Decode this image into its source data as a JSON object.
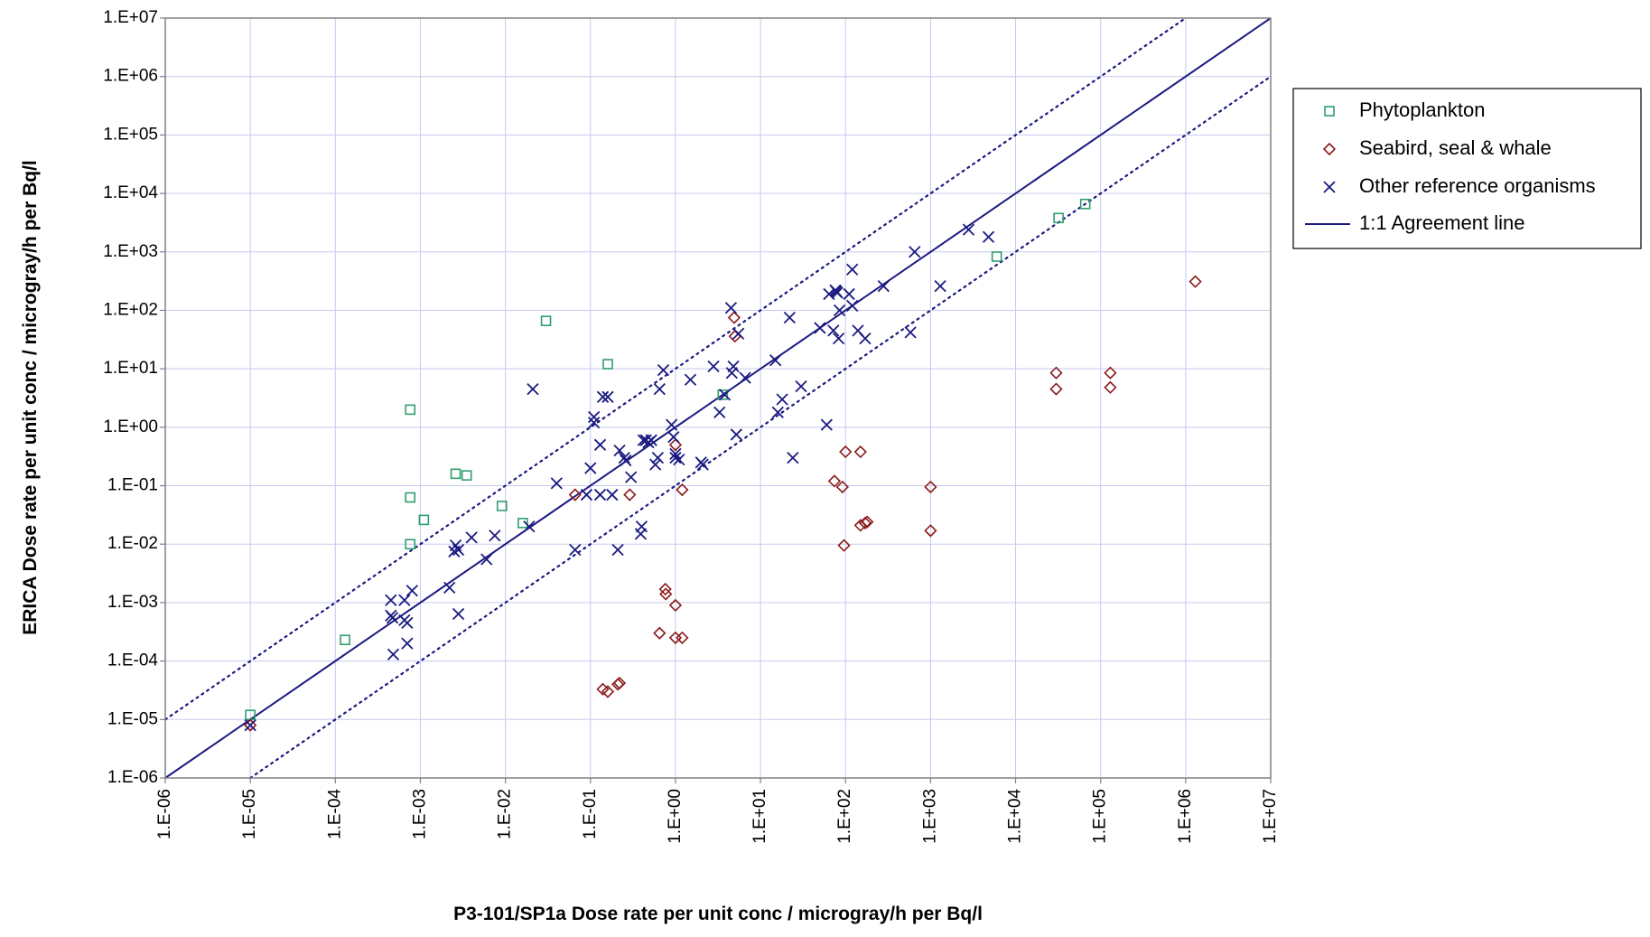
{
  "chart_data": {
    "type": "scatter",
    "x_scale": "log",
    "y_scale": "log",
    "xlim": [
      1e-06,
      10000000.0
    ],
    "ylim": [
      1e-06,
      10000000.0
    ],
    "grid": true,
    "legend_position": "right",
    "xlabel": "P3-101/SP1a Dose rate per unit conc / microgray/h per Bq/l",
    "ylabel": "ERICA Dose rate per unit conc / microgray/h per Bq/l",
    "x_tick_labels": [
      "1.E-06",
      "1.E-05",
      "1.E-04",
      "1.E-03",
      "1.E-02",
      "1.E-01",
      "1.E+00",
      "1.E+01",
      "1.E+02",
      "1.E+03",
      "1.E+04",
      "1.E+05",
      "1.E+06",
      "1.E+07"
    ],
    "y_tick_labels": [
      "1.E-06",
      "1.E-05",
      "1.E-04",
      "1.E-03",
      "1.E-02",
      "1.E-01",
      "1.E+00",
      "1.E+01",
      "1.E+02",
      "1.E+03",
      "1.E+04",
      "1.E+05",
      "1.E+06",
      "1.E+07"
    ],
    "colors": {
      "phytoplankton": "#2e9e6e",
      "seabird": "#8b1a1a",
      "other": "#1a1a80",
      "line": "#1a1a80",
      "grid": "#c8c8f0"
    },
    "series": [
      {
        "name": "Phytoplankton",
        "marker": "square",
        "points": [
          [
            1e-05,
            1.2e-05
          ],
          [
            0.00013,
            0.00023
          ],
          [
            0.00076,
            2.0
          ],
          [
            0.00076,
            0.063
          ],
          [
            0.00076,
            0.01
          ],
          [
            0.0011,
            0.026
          ],
          [
            0.0026,
            0.16
          ],
          [
            0.0035,
            0.15
          ],
          [
            0.0091,
            0.045
          ],
          [
            0.016,
            0.023
          ],
          [
            0.03,
            66.0
          ],
          [
            0.16,
            12.0
          ],
          [
            3.6,
            3.6
          ],
          [
            6000.0,
            830.0
          ],
          [
            32000.0,
            3800.0
          ],
          [
            66000.0,
            6600.0
          ]
        ]
      },
      {
        "name": "Seabird, seal & whale",
        "marker": "diamond",
        "points": [
          [
            1e-05,
            8e-06
          ],
          [
            0.14,
            3.3e-05
          ],
          [
            0.16,
            3e-05
          ],
          [
            0.21,
            4e-05
          ],
          [
            0.22,
            4.2e-05
          ],
          [
            0.066,
            0.07
          ],
          [
            0.29,
            0.07
          ],
          [
            0.65,
            0.0003
          ],
          [
            0.76,
            0.0017
          ],
          [
            0.77,
            0.0014
          ],
          [
            1.0,
            0.0009
          ],
          [
            1.0,
            0.00025
          ],
          [
            1.2,
            0.00025
          ],
          [
            1.0,
            0.5
          ],
          [
            1.2,
            0.085
          ],
          [
            4.9,
            75.0
          ],
          [
            5.0,
            36.0
          ],
          [
            74.0,
            0.12
          ],
          [
            92.0,
            0.095
          ],
          [
            96.0,
            0.0095
          ],
          [
            100.0,
            0.38
          ],
          [
            150.0,
            0.38
          ],
          [
            150.0,
            0.021
          ],
          [
            170.0,
            0.023
          ],
          [
            180.0,
            0.024
          ],
          [
            1000.0,
            0.095
          ],
          [
            1000.0,
            0.017
          ],
          [
            30000.0,
            8.5
          ],
          [
            30000.0,
            4.5
          ],
          [
            130000.0,
            8.5
          ],
          [
            130000.0,
            4.8
          ],
          [
            1300000.0,
            310.0
          ]
        ]
      },
      {
        "name": "Other reference organisms",
        "marker": "x",
        "points": [
          [
            1e-05,
            8e-06
          ],
          [
            0.00045,
            0.0011
          ],
          [
            0.00045,
            0.0006
          ],
          [
            0.00047,
            0.00055
          ],
          [
            0.00048,
            0.00013
          ],
          [
            0.00065,
            0.0011
          ],
          [
            0.00065,
            0.0005
          ],
          [
            0.0007,
            0.00045
          ],
          [
            0.0007,
            0.0002
          ],
          [
            0.0008,
            0.0016
          ],
          [
            0.0022,
            0.0018
          ],
          [
            0.0025,
            0.0075
          ],
          [
            0.0026,
            0.0095
          ],
          [
            0.0028,
            0.00064
          ],
          [
            0.0028,
            0.008
          ],
          [
            0.004,
            0.013
          ],
          [
            0.006,
            0.0055
          ],
          [
            0.0075,
            0.014
          ],
          [
            0.019,
            0.02
          ],
          [
            0.021,
            4.5
          ],
          [
            0.04,
            0.11
          ],
          [
            0.066,
            0.008
          ],
          [
            0.09,
            0.07
          ],
          [
            0.1,
            0.2
          ],
          [
            0.11,
            1.5
          ],
          [
            0.11,
            1.2
          ],
          [
            0.13,
            0.5
          ],
          [
            0.13,
            0.07
          ],
          [
            0.14,
            3.3
          ],
          [
            0.16,
            3.3
          ],
          [
            0.18,
            0.07
          ],
          [
            0.21,
            0.008
          ],
          [
            0.22,
            0.4
          ],
          [
            0.25,
            0.3
          ],
          [
            0.26,
            0.27
          ],
          [
            0.3,
            0.14
          ],
          [
            0.39,
            0.015
          ],
          [
            0.4,
            0.02
          ],
          [
            0.42,
            0.6
          ],
          [
            0.45,
            0.6
          ],
          [
            0.48,
            0.55
          ],
          [
            0.52,
            0.6
          ],
          [
            0.58,
            0.23
          ],
          [
            0.62,
            0.3
          ],
          [
            0.65,
            4.5
          ],
          [
            0.72,
            9.5
          ],
          [
            0.9,
            1.1
          ],
          [
            0.95,
            0.68
          ],
          [
            1.0,
            0.35
          ],
          [
            1.0,
            0.3
          ],
          [
            1.1,
            0.28
          ],
          [
            1.5,
            6.5
          ],
          [
            2.0,
            0.25
          ],
          [
            2.1,
            0.23
          ],
          [
            2.8,
            11.0
          ],
          [
            3.3,
            1.8
          ],
          [
            3.8,
            3.6
          ],
          [
            4.5,
            110.0
          ],
          [
            4.6,
            8.5
          ],
          [
            4.8,
            11.0
          ],
          [
            5.2,
            0.75
          ],
          [
            5.5,
            40.0
          ],
          [
            6.6,
            7.0
          ],
          [
            15.0,
            14.0
          ],
          [
            16.0,
            1.8
          ],
          [
            18.0,
            3.0
          ],
          [
            22.0,
            75.0
          ],
          [
            24.0,
            0.3
          ],
          [
            30.0,
            5.0
          ],
          [
            50.0,
            50.0
          ],
          [
            60.0,
            1.1
          ],
          [
            64.0,
            190.0
          ],
          [
            72.0,
            45.0
          ],
          [
            76.0,
            220.0
          ],
          [
            78.0,
            210.0
          ],
          [
            80.0,
            200.0
          ],
          [
            83.0,
            33.0
          ],
          [
            85.0,
            100.0
          ],
          [
            110.0,
            190.0
          ],
          [
            120.0,
            120.0
          ],
          [
            120.0,
            500.0
          ],
          [
            140.0,
            45.0
          ],
          [
            170.0,
            33.0
          ],
          [
            280.0,
            260.0
          ],
          [
            580.0,
            42.0
          ],
          [
            650.0,
            1000.0
          ],
          [
            1300.0,
            260.0
          ],
          [
            2800.0,
            2400.0
          ],
          [
            4800.0,
            1800.0
          ]
        ]
      }
    ],
    "reference_lines": [
      {
        "name": "1:1 Agreement line",
        "style": "solid",
        "factor": 1
      },
      {
        "style": "dotted",
        "factor": 10
      },
      {
        "style": "dotted",
        "factor": 0.1
      }
    ]
  },
  "legend": [
    {
      "label": "Phytoplankton",
      "marker": "square"
    },
    {
      "label": "Seabird, seal & whale",
      "marker": "diamond"
    },
    {
      "label": "Other reference organisms",
      "marker": "x"
    },
    {
      "label": "1:1 Agreement line",
      "marker": "line"
    }
  ]
}
